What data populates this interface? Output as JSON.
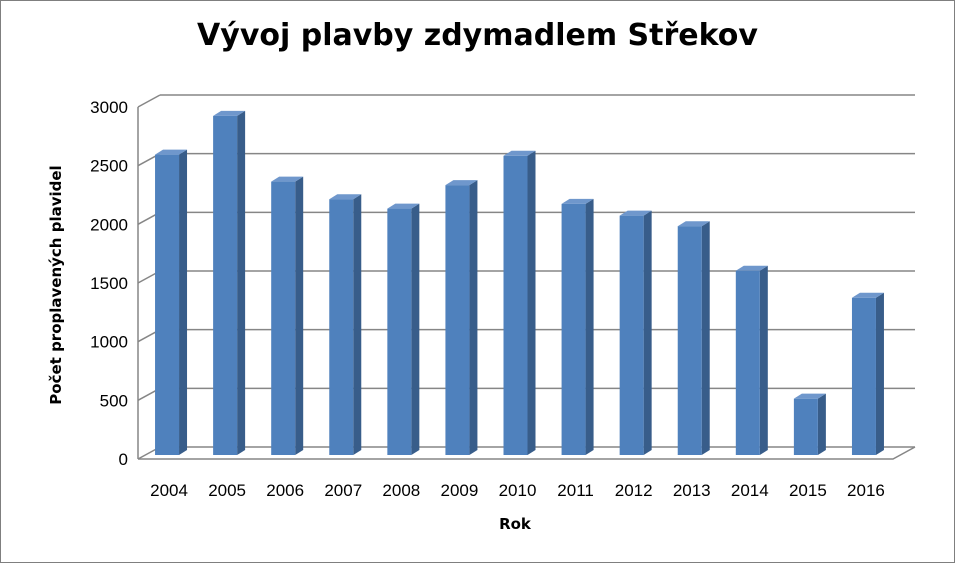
{
  "chart_data": {
    "type": "bar",
    "style": "3d-column",
    "title": "Vývoj plavby zdymadlem Střekov",
    "xlabel": "Rok",
    "ylabel": "Počet proplavených plavidel",
    "categories": [
      "2004",
      "2005",
      "2006",
      "2007",
      "2008",
      "2009",
      "2010",
      "2011",
      "2012",
      "2013",
      "2014",
      "2015",
      "2016"
    ],
    "values": [
      2560,
      2890,
      2330,
      2180,
      2100,
      2300,
      2550,
      2140,
      2040,
      1950,
      1570,
      480,
      1340
    ],
    "ylim": [
      0,
      3000
    ],
    "yticks": [
      "0",
      "500",
      "1000",
      "1500",
      "2000",
      "2500",
      "3000"
    ],
    "grid": true,
    "legend": "none",
    "colors": {
      "bar_front": "#4f81bd",
      "bar_side": "#385d8a",
      "bar_top": "#6f97cc",
      "gridline": "#868686",
      "frame": "#7f7f7f"
    }
  }
}
